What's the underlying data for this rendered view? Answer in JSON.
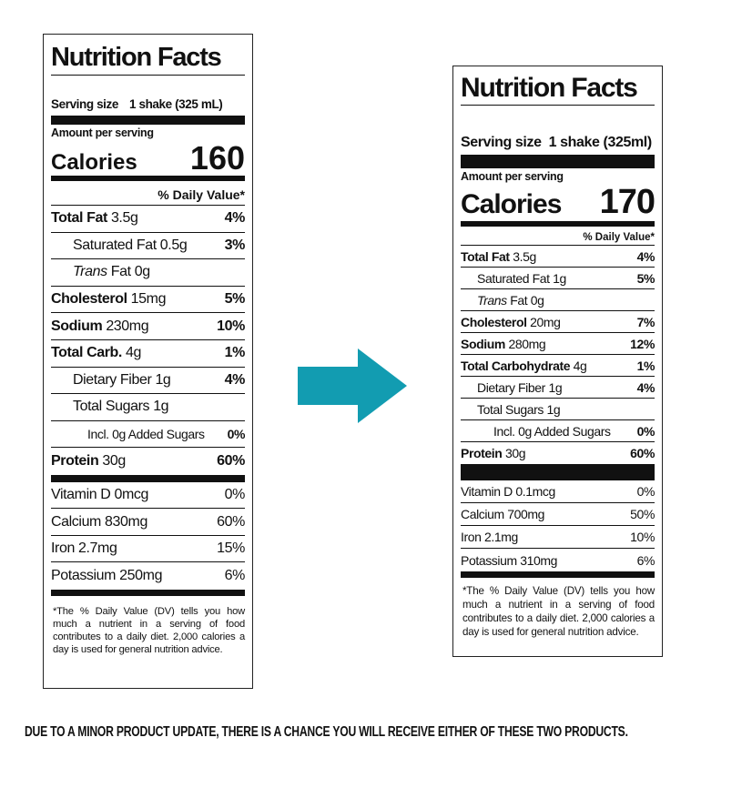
{
  "labels": [
    {
      "title": "Nutrition Facts",
      "serving_label": "Serving size",
      "serving_value": "1 shake (325 mL)",
      "amount_per_serving": "Amount per serving",
      "calories_label": "Calories",
      "calories_value": "160",
      "dv_header": "% Daily Value*",
      "nutrients": [
        {
          "name": "Total Fat",
          "amount": "3.5g",
          "dv": "4%"
        },
        {
          "name": "Saturated Fat",
          "amount": "0.5g",
          "dv": "3%"
        },
        {
          "name_prefix": "Trans",
          "name": "Fat",
          "amount": "0g"
        },
        {
          "name": "Cholesterol",
          "amount": "15mg",
          "dv": "5%"
        },
        {
          "name": "Sodium",
          "amount": "230mg",
          "dv": "10%"
        },
        {
          "name": "Total Carb.",
          "amount": "4g",
          "dv": "1%"
        },
        {
          "name": "Dietary Fiber",
          "amount": "1g",
          "dv": "4%"
        },
        {
          "name": "Total Sugars",
          "amount": "1g"
        },
        {
          "name": "Incl. 0g Added Sugars",
          "dv": "0%"
        },
        {
          "name": "Protein",
          "amount": "30g",
          "dv": "60%"
        }
      ],
      "vitamins": [
        {
          "name": "Vitamin D 0mcg",
          "dv": "0%"
        },
        {
          "name": "Calcium 830mg",
          "dv": "60%"
        },
        {
          "name": "Iron 2.7mg",
          "dv": "15%"
        },
        {
          "name": "Potassium 250mg",
          "dv": "6%"
        }
      ],
      "footnote": "*The % Daily Value (DV) tells you how much a nutrient in a serving of food contributes to a daily diet. 2,000 calories a day is used for general nutrition advice."
    },
    {
      "title": "Nutrition Facts",
      "serving_label": "Serving size",
      "serving_value": "1 shake (325ml)",
      "amount_per_serving": "Amount per serving",
      "calories_label": "Calories",
      "calories_value": "170",
      "dv_header": "% Daily Value*",
      "nutrients": [
        {
          "name": "Total Fat",
          "amount": "3.5g",
          "dv": "4%"
        },
        {
          "name": "Saturated Fat",
          "amount": "1g",
          "dv": "5%"
        },
        {
          "name_prefix": "Trans",
          "name": "Fat",
          "amount": "0g"
        },
        {
          "name": "Cholesterol",
          "amount": "20mg",
          "dv": "7%"
        },
        {
          "name": "Sodium",
          "amount": "280mg",
          "dv": "12%"
        },
        {
          "name": "Total Carbohydrate",
          "amount": "4g",
          "dv": "1%"
        },
        {
          "name": "Dietary Fiber",
          "amount": "1g",
          "dv": "4%"
        },
        {
          "name": "Total Sugars",
          "amount": "1g"
        },
        {
          "name": "Incl. 0g Added Sugars",
          "dv": "0%"
        },
        {
          "name": "Protein",
          "amount": "30g",
          "dv": "60%"
        }
      ],
      "vitamins": [
        {
          "name": "Vitamin D 0.1mcg",
          "dv": "0%"
        },
        {
          "name": "Calcium 700mg",
          "dv": "50%"
        },
        {
          "name": "Iron 2.1mg",
          "dv": "10%"
        },
        {
          "name": "Potassium 310mg",
          "dv": "6%"
        }
      ],
      "footnote": "*The % Daily Value (DV) tells you how much a nutrient in a serving of food contributes to a daily diet. 2,000 calories a day is used for general nutrition advice."
    }
  ],
  "notice": "DUE TO A MINOR PRODUCT UPDATE, THERE IS A CHANCE YOU WILL RECEIVE EITHER OF THESE TWO PRODUCTS."
}
